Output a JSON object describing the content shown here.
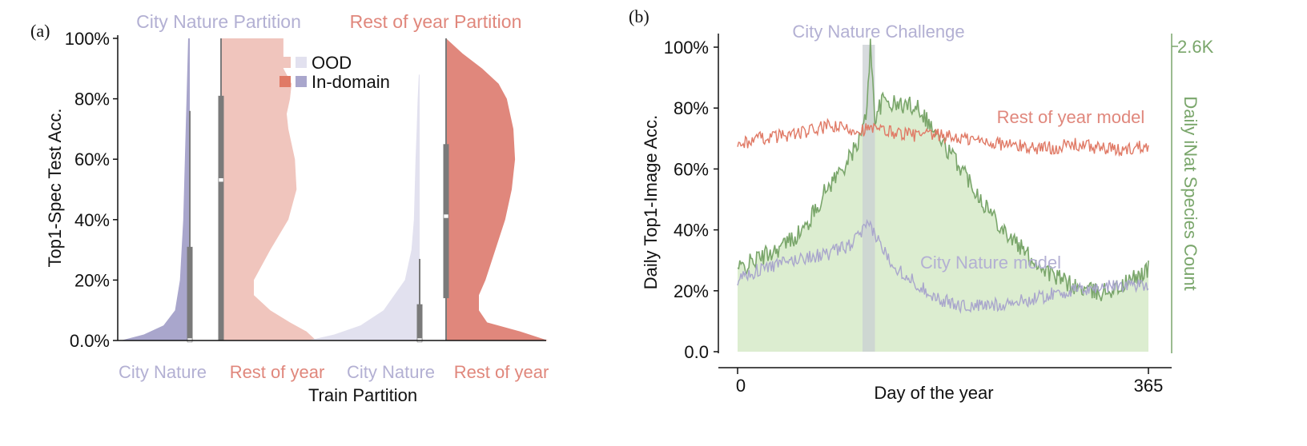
{
  "colors": {
    "city_nature": "#a9a6cc",
    "city_nature_dark": "#b3b0d3",
    "city_nature_light": "#e2e1ef",
    "rest_of_year": "#e07a66",
    "rest_of_year_dark": "#e0877c",
    "rest_of_year_light": "#f0c5bd",
    "species": "#7aa66b",
    "species_fill": "#dcedd0",
    "box": "#7a7a7a"
  },
  "panel_a": {
    "label": "(a)",
    "title_left": "City Nature Partition",
    "title_right": "Rest of year Partition",
    "ylabel": "Top1-Spec Test Acc.",
    "xlabel": "Train Partition",
    "yticks": [
      "0.0%",
      "20%",
      "40%",
      "60%",
      "80%",
      "100%"
    ],
    "xticks": [
      "City Nature",
      "Rest of year",
      "City Nature",
      "Rest of year"
    ],
    "legend": {
      "ood": "OOD",
      "in_domain": "In-domain"
    }
  },
  "panel_b": {
    "label": "(b)",
    "ylabel": "Daily Top1-Image Acc.",
    "y2label": "Daily iNat Species Count",
    "xlabel": "Day of the year",
    "yticks": [
      "0.0",
      "20%",
      "40%",
      "60%",
      "80%",
      "100%"
    ],
    "y2tick": "2.6K",
    "xticks": [
      "0",
      "365"
    ],
    "annotation": "City Nature Challenge",
    "series_rest": "Rest of year model",
    "series_city": "City Nature model"
  },
  "chart_data": [
    {
      "type": "violin",
      "title": "City Nature Partition / Rest of year Partition",
      "xlabel": "Train Partition",
      "ylabel": "Top1-Spec Test Acc.",
      "ylim": [
        0,
        100
      ],
      "y_unit": "%",
      "legend": [
        "OOD",
        "In-domain"
      ],
      "legend_placement": "top-right",
      "categories": [
        "City Nature",
        "Rest of year",
        "City Nature",
        "Rest of year"
      ],
      "series": [
        {
          "partition": "City Nature Partition",
          "train": "City Nature",
          "group": "In-domain",
          "side": "left",
          "density": [
            [
              0,
              0.42
            ],
            [
              2,
              0.28
            ],
            [
              5,
              0.16
            ],
            [
              10,
              0.09
            ],
            [
              20,
              0.06
            ],
            [
              30,
              0.05
            ],
            [
              40,
              0.04
            ],
            [
              50,
              0.035
            ],
            [
              60,
              0.03
            ],
            [
              70,
              0.025
            ],
            [
              80,
              0.02
            ],
            [
              90,
              0.015
            ],
            [
              100,
              0.01
            ]
          ],
          "box": {
            "q1": 0,
            "median": 0,
            "q3": 31,
            "whisker_low": 0,
            "whisker_high": 76
          }
        },
        {
          "partition": "City Nature Partition",
          "train": "Rest of year",
          "group": "OOD",
          "side": "right",
          "density": [
            [
              0,
              0.58
            ],
            [
              3,
              0.52
            ],
            [
              6,
              0.42
            ],
            [
              10,
              0.3
            ],
            [
              15,
              0.2
            ],
            [
              20,
              0.2
            ],
            [
              30,
              0.3
            ],
            [
              40,
              0.41
            ],
            [
              50,
              0.46
            ],
            [
              60,
              0.45
            ],
            [
              70,
              0.41
            ],
            [
              75,
              0.4
            ],
            [
              80,
              0.42
            ],
            [
              85,
              0.43
            ],
            [
              90,
              0.38
            ],
            [
              95,
              0.38
            ],
            [
              100,
              0.38
            ]
          ],
          "box": {
            "q1": 0,
            "median": 53,
            "q3": 81,
            "whisker_low": 0,
            "whisker_high": 100
          }
        },
        {
          "partition": "Rest of year Partition",
          "train": "City Nature",
          "group": "OOD",
          "side": "left",
          "density": [
            [
              0,
              0.68
            ],
            [
              2,
              0.52
            ],
            [
              5,
              0.36
            ],
            [
              10,
              0.22
            ],
            [
              20,
              0.09
            ],
            [
              30,
              0.05
            ],
            [
              40,
              0.035
            ],
            [
              50,
              0.03
            ],
            [
              60,
              0.025
            ],
            [
              70,
              0.018
            ],
            [
              80,
              0.012
            ],
            [
              88,
              0.005
            ]
          ],
          "box": {
            "q1": 0,
            "median": 0,
            "q3": 12,
            "whisker_low": 0,
            "whisker_high": 27
          }
        },
        {
          "partition": "Rest of year Partition",
          "train": "Rest of year",
          "group": "In-domain",
          "side": "right",
          "density": [
            [
              0,
              0.62
            ],
            [
              3,
              0.45
            ],
            [
              6,
              0.25
            ],
            [
              10,
              0.2
            ],
            [
              15,
              0.2
            ],
            [
              20,
              0.24
            ],
            [
              30,
              0.3
            ],
            [
              40,
              0.36
            ],
            [
              50,
              0.4
            ],
            [
              60,
              0.42
            ],
            [
              70,
              0.41
            ],
            [
              80,
              0.37
            ],
            [
              85,
              0.32
            ],
            [
              90,
              0.22
            ],
            [
              95,
              0.1
            ],
            [
              100,
              0
            ]
          ],
          "box": {
            "q1": 14,
            "median": 41,
            "q3": 65,
            "whisker_low": 0,
            "whisker_high": 100
          }
        }
      ]
    },
    {
      "type": "line",
      "xlabel": "Day of the year",
      "ylabel": "Daily Top1-Image Acc.",
      "y2label": "Daily iNat Species Count",
      "xlim": [
        0,
        365
      ],
      "ylim": [
        0,
        100
      ],
      "y2lim": [
        0,
        2600
      ],
      "highlight": {
        "label": "City Nature Challenge",
        "x_start": 111,
        "x_end": 122
      },
      "series": [
        {
          "name": "Rest of year model",
          "axis": "left",
          "anchors": [
            [
              0,
              68
            ],
            [
              20,
              70
            ],
            [
              40,
              71
            ],
            [
              60,
              72
            ],
            [
              80,
              74
            ],
            [
              100,
              73
            ],
            [
              120,
              73
            ],
            [
              140,
              72
            ],
            [
              160,
              71
            ],
            [
              180,
              71
            ],
            [
              200,
              70
            ],
            [
              220,
              69
            ],
            [
              240,
              68
            ],
            [
              260,
              67
            ],
            [
              280,
              67
            ],
            [
              300,
              68
            ],
            [
              320,
              67
            ],
            [
              340,
              66
            ],
            [
              365,
              68
            ]
          ]
        },
        {
          "name": "City Nature model",
          "axis": "left",
          "anchors": [
            [
              0,
              24
            ],
            [
              20,
              27
            ],
            [
              40,
              29
            ],
            [
              60,
              31
            ],
            [
              80,
              32
            ],
            [
              100,
              35
            ],
            [
              110,
              39
            ],
            [
              115,
              41
            ],
            [
              120,
              40
            ],
            [
              130,
              33
            ],
            [
              140,
              28
            ],
            [
              160,
              22
            ],
            [
              180,
              17
            ],
            [
              200,
              15
            ],
            [
              220,
              15
            ],
            [
              240,
              16
            ],
            [
              260,
              17
            ],
            [
              280,
              19
            ],
            [
              300,
              20
            ],
            [
              320,
              21
            ],
            [
              340,
              22
            ],
            [
              365,
              22
            ]
          ]
        },
        {
          "name": "Daily iNat Species Count",
          "axis": "right",
          "anchors": [
            [
              0,
              700
            ],
            [
              20,
              800
            ],
            [
              40,
              900
            ],
            [
              60,
              1050
            ],
            [
              80,
              1400
            ],
            [
              100,
              1650
            ],
            [
              110,
              1850
            ],
            [
              114,
              2000
            ],
            [
              118,
              2600
            ],
            [
              122,
              2000
            ],
            [
              130,
              2150
            ],
            [
              140,
              2100
            ],
            [
              160,
              2100
            ],
            [
              180,
              1800
            ],
            [
              200,
              1550
            ],
            [
              220,
              1250
            ],
            [
              240,
              1000
            ],
            [
              260,
              800
            ],
            [
              280,
              650
            ],
            [
              300,
              550
            ],
            [
              320,
              500
            ],
            [
              340,
              550
            ],
            [
              365,
              700
            ]
          ]
        }
      ]
    }
  ]
}
